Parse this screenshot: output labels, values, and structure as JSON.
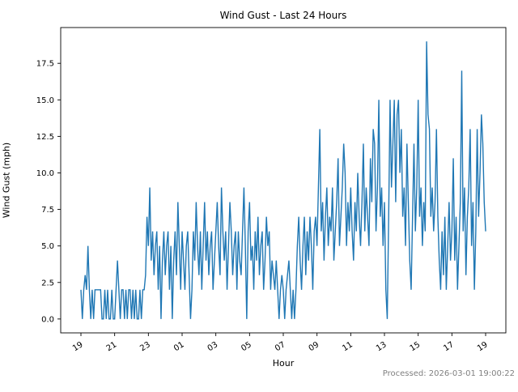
{
  "footer": "Processed: 2026-03-01 19:00:22",
  "colors": {
    "line": "#1f77b4",
    "axis": "#000000",
    "tick_text": "#000000",
    "footer_text": "#808080",
    "background": "#ffffff"
  },
  "chart_data": {
    "type": "line",
    "title": "Wind Gust - Last 24 Hours",
    "xlabel": "Hour",
    "ylabel": "Wind Gust (mph)",
    "legend": "none",
    "grid": false,
    "x_tick_labels": [
      "19",
      "21",
      "23",
      "01",
      "03",
      "05",
      "07",
      "09",
      "11",
      "13",
      "15",
      "17",
      "19"
    ],
    "x_tick_positions_hours": [
      0,
      2,
      4,
      6,
      8,
      10,
      12,
      14,
      16,
      18,
      20,
      22,
      24
    ],
    "y_tick_labels": [
      "0.0",
      "2.5",
      "5.0",
      "7.5",
      "10.0",
      "12.5",
      "15.0",
      "17.5"
    ],
    "y_tick_values": [
      0,
      2.5,
      5,
      7.5,
      10,
      12.5,
      15,
      17.5
    ],
    "xlim_hours": [
      -1.2,
      25.2
    ],
    "ylim": [
      -0.95,
      19.95
    ],
    "x_start_label": "19",
    "x_span_hours": 24,
    "sample_interval_minutes": 5,
    "values_mph": [
      2,
      0,
      2,
      3,
      2,
      5,
      2,
      0,
      2,
      0,
      2,
      2,
      2,
      2,
      2,
      0,
      0,
      2,
      0,
      2,
      0,
      0,
      2,
      0,
      0,
      2,
      4,
      2,
      0,
      2,
      2,
      0,
      2,
      0,
      2,
      2,
      0,
      2,
      0,
      2,
      0,
      0,
      2,
      0,
      2,
      2,
      3,
      7,
      5,
      9,
      4,
      6,
      3,
      5,
      6,
      2,
      5,
      0,
      4,
      6,
      3,
      5,
      6,
      2,
      5,
      0,
      4,
      6,
      3,
      8,
      5,
      2,
      6,
      4,
      2,
      5,
      6,
      3,
      0,
      2,
      6,
      4,
      8,
      5,
      3,
      6,
      2,
      5,
      8,
      4,
      6,
      3,
      5,
      6,
      2,
      4,
      6,
      8,
      5,
      3,
      9,
      6,
      4,
      6,
      2,
      5,
      8,
      6,
      3,
      5,
      6,
      2,
      6,
      4,
      3,
      6,
      9,
      5,
      0,
      6,
      8,
      4,
      5,
      2,
      6,
      4,
      7,
      3,
      5,
      6,
      2,
      4,
      7,
      5,
      6,
      2,
      4,
      3,
      2,
      4,
      2,
      0,
      2,
      3,
      2,
      0,
      2,
      3,
      4,
      2,
      0,
      2,
      0,
      2,
      5,
      7,
      4,
      2,
      5,
      7,
      3,
      6,
      4,
      7,
      5,
      2,
      6,
      7,
      5,
      9,
      13,
      6,
      8,
      4,
      7,
      9,
      5,
      7,
      6,
      9,
      4,
      6,
      8,
      11,
      5,
      7,
      9,
      12,
      10,
      5,
      8,
      6,
      9,
      6,
      4,
      8,
      6,
      10,
      7,
      5,
      8,
      12,
      6,
      9,
      7,
      5,
      11,
      8,
      13,
      12,
      6,
      9,
      15,
      7,
      9,
      5,
      8,
      2,
      0,
      7,
      15,
      9,
      12,
      15,
      8,
      14,
      15,
      10,
      13,
      7,
      9,
      5,
      12,
      8,
      4,
      2,
      7,
      12,
      6,
      9,
      15,
      7,
      9,
      5,
      8,
      6,
      19,
      14,
      13,
      7,
      9,
      6,
      8,
      13,
      7,
      4,
      2,
      6,
      3,
      7,
      2,
      5,
      8,
      4,
      6,
      11,
      4,
      7,
      2,
      5,
      8,
      17,
      6,
      9,
      3,
      7,
      9,
      13,
      5,
      8,
      2,
      6,
      13,
      7,
      10,
      14,
      12,
      8,
      6
    ]
  }
}
